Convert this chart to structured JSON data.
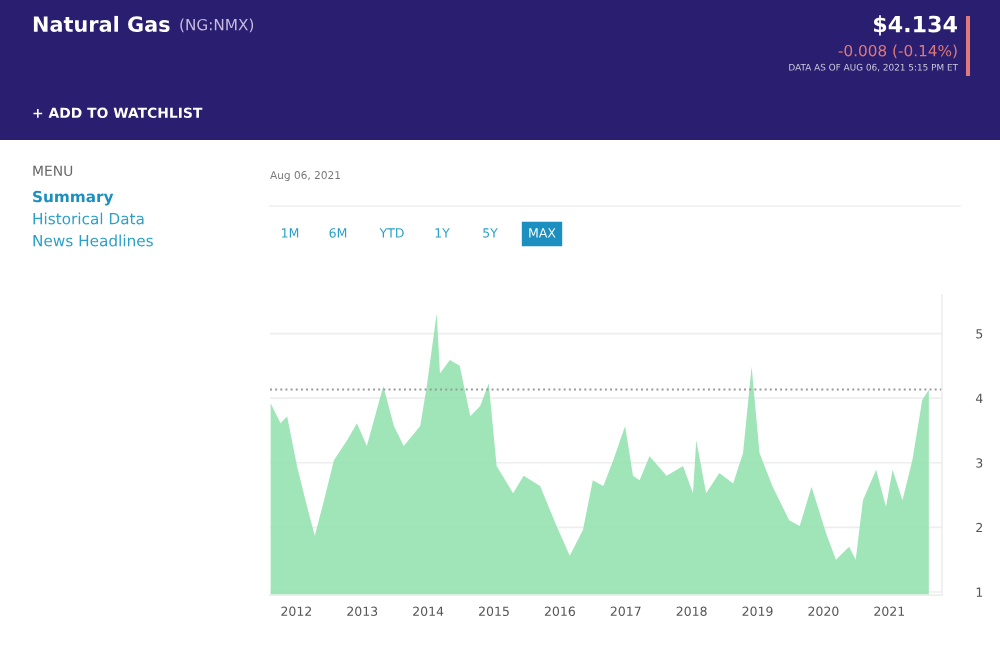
{
  "chart_data": {
    "type": "area",
    "title": "Natural Gas",
    "subtitle": "(NG:NMX)",
    "annotations": [
      "$4.134",
      "-0.008 (-0.14%)",
      "DATA AS OF AUG 06, 2021 5:15 PM ET",
      "+ ADD TO WATCHLIST",
      "MENU",
      "Summary",
      "Historical Data",
      "News Headlines",
      "Aug 06, 2021",
      "1M",
      "6M",
      "YTD",
      "1Y",
      "5Y",
      "MAX"
    ],
    "x": [
      2011.61,
      2011.76,
      2011.86,
      2012.01,
      2012.16,
      2012.28,
      2012.42,
      2012.57,
      2012.77,
      2012.92,
      2013.07,
      2013.32,
      2013.48,
      2013.63,
      2013.88,
      2013.98,
      2014.13,
      2014.18,
      2014.33,
      2014.48,
      2014.64,
      2014.79,
      2014.92,
      2015.04,
      2015.29,
      2015.45,
      2015.7,
      2015.95,
      2016.15,
      2016.35,
      2016.5,
      2016.66,
      2016.81,
      2016.99,
      2017.11,
      2017.21,
      2017.36,
      2017.62,
      2017.87,
      2018.02,
      2018.07,
      2018.22,
      2018.42,
      2018.63,
      2018.78,
      2018.91,
      2019.03,
      2019.23,
      2019.48,
      2019.64,
      2019.82,
      2020.04,
      2020.19,
      2020.39,
      2020.49,
      2020.6,
      2020.8,
      2020.95,
      2021.05,
      2021.2,
      2021.35,
      2021.5,
      2021.6
    ],
    "series": [
      {
        "color": "#8ee0ac",
        "values": [
          3.92,
          3.61,
          3.72,
          2.95,
          2.33,
          1.87,
          2.42,
          3.04,
          3.35,
          3.61,
          3.26,
          4.19,
          3.57,
          3.26,
          3.57,
          4.19,
          5.31,
          4.38,
          4.59,
          4.5,
          3.72,
          3.88,
          4.23,
          2.95,
          2.53,
          2.8,
          2.64,
          2.02,
          1.56,
          1.96,
          2.73,
          2.64,
          3.04,
          3.57,
          2.8,
          2.73,
          3.1,
          2.8,
          2.95,
          2.53,
          3.35,
          2.53,
          2.84,
          2.68,
          3.15,
          4.49,
          3.15,
          2.63,
          2.11,
          2.02,
          2.63,
          1.91,
          1.5,
          1.7,
          1.5,
          2.42,
          2.89,
          2.32,
          2.89,
          2.42,
          3.04,
          3.97,
          4.13
        ]
      }
    ],
    "xlim": [
      2011.6,
      2021.8
    ],
    "xticks": [
      2012,
      2013,
      2014,
      2015,
      2016,
      2017,
      2018,
      2019,
      2020,
      2021
    ],
    "ylim": [
      0.95,
      5.6
    ],
    "yticks": [
      1,
      2,
      3,
      4,
      5
    ],
    "grid": "y",
    "ref_lines": [
      {
        "axis": "y",
        "value": 4.134,
        "color": "#999999",
        "line_style": "dotted"
      }
    ]
  }
}
